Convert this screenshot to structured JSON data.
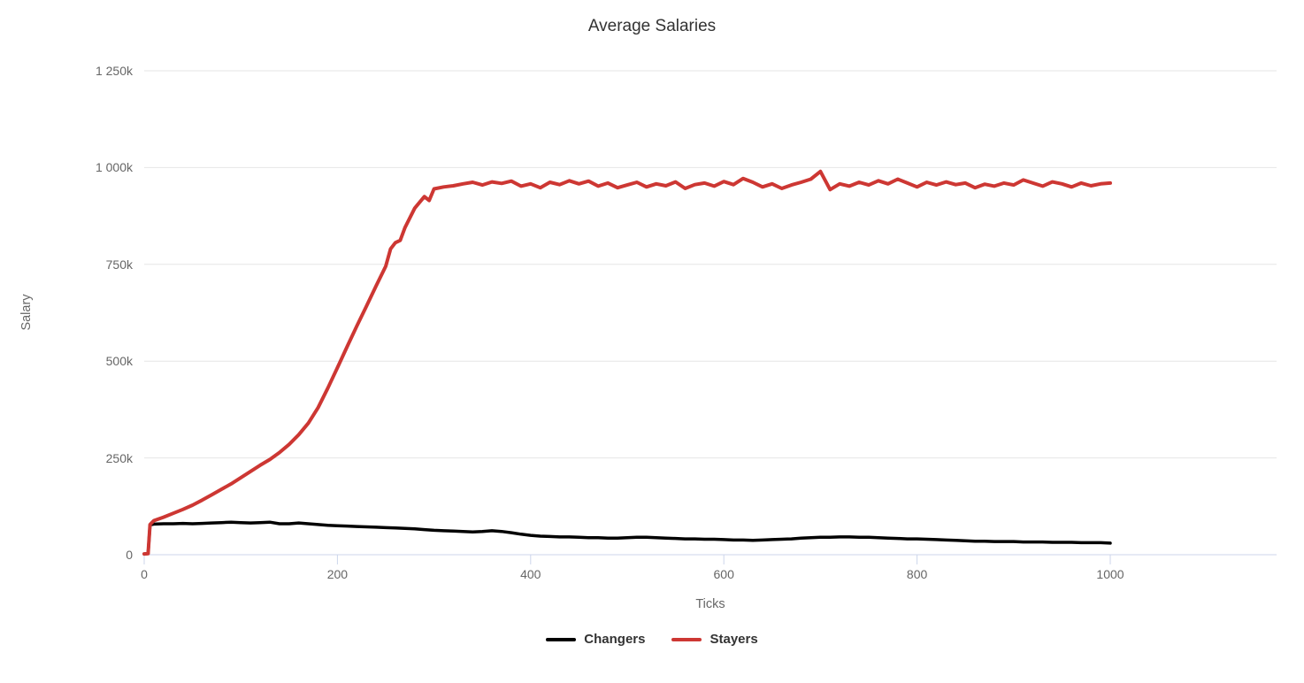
{
  "title": "Average Salaries",
  "style": {
    "background": "#ffffff",
    "title_color": "#333333",
    "tick_label_color": "#666666",
    "grid_color": "#e6e6e6",
    "axis_line_color": "#ccd6eb",
    "changers_color": "#000000",
    "stayers_color": "#cd3733"
  },
  "chart_data": {
    "type": "line",
    "title": "Average Salaries",
    "xlabel": "Ticks",
    "ylabel": "Salary",
    "values_unit": "thousands (k)",
    "xlim": [
      0,
      1172
    ],
    "ylim_k": [
      0,
      1250
    ],
    "x_ticks": [
      0,
      200,
      400,
      600,
      800,
      1000
    ],
    "y_ticks": [
      {
        "label": "0",
        "value_k": 0
      },
      {
        "label": "250k",
        "value_k": 250
      },
      {
        "label": "500k",
        "value_k": 500
      },
      {
        "label": "750k",
        "value_k": 750
      },
      {
        "label": "1 000k",
        "value_k": 1000
      },
      {
        "label": "1 250k",
        "value_k": 1250
      }
    ],
    "grid": "horizontal",
    "legend_position": "bottom-center",
    "series": [
      {
        "name": "Changers",
        "color": "#000000",
        "line_width": 3.5,
        "points": [
          [
            0,
            2
          ],
          [
            4,
            3
          ],
          [
            6,
            77
          ],
          [
            10,
            79
          ],
          [
            20,
            80
          ],
          [
            30,
            80
          ],
          [
            40,
            81
          ],
          [
            50,
            80
          ],
          [
            60,
            81
          ],
          [
            70,
            82
          ],
          [
            80,
            83
          ],
          [
            90,
            84
          ],
          [
            100,
            83
          ],
          [
            110,
            82
          ],
          [
            120,
            83
          ],
          [
            130,
            84
          ],
          [
            140,
            80
          ],
          [
            150,
            80
          ],
          [
            160,
            82
          ],
          [
            170,
            80
          ],
          [
            180,
            78
          ],
          [
            190,
            76
          ],
          [
            200,
            75
          ],
          [
            210,
            74
          ],
          [
            220,
            73
          ],
          [
            230,
            72
          ],
          [
            240,
            71
          ],
          [
            250,
            70
          ],
          [
            260,
            69
          ],
          [
            270,
            68
          ],
          [
            280,
            67
          ],
          [
            290,
            65
          ],
          [
            300,
            63
          ],
          [
            310,
            62
          ],
          [
            320,
            61
          ],
          [
            330,
            60
          ],
          [
            340,
            59
          ],
          [
            350,
            60
          ],
          [
            360,
            62
          ],
          [
            370,
            60
          ],
          [
            380,
            57
          ],
          [
            390,
            53
          ],
          [
            400,
            50
          ],
          [
            410,
            48
          ],
          [
            420,
            47
          ],
          [
            430,
            46
          ],
          [
            440,
            46
          ],
          [
            450,
            45
          ],
          [
            460,
            44
          ],
          [
            470,
            44
          ],
          [
            480,
            43
          ],
          [
            490,
            43
          ],
          [
            500,
            44
          ],
          [
            510,
            45
          ],
          [
            520,
            45
          ],
          [
            530,
            44
          ],
          [
            540,
            43
          ],
          [
            550,
            42
          ],
          [
            560,
            41
          ],
          [
            570,
            41
          ],
          [
            580,
            40
          ],
          [
            590,
            40
          ],
          [
            600,
            39
          ],
          [
            610,
            38
          ],
          [
            620,
            38
          ],
          [
            630,
            37
          ],
          [
            640,
            38
          ],
          [
            650,
            39
          ],
          [
            660,
            40
          ],
          [
            670,
            41
          ],
          [
            680,
            43
          ],
          [
            690,
            44
          ],
          [
            700,
            45
          ],
          [
            710,
            45
          ],
          [
            720,
            46
          ],
          [
            730,
            46
          ],
          [
            740,
            45
          ],
          [
            750,
            45
          ],
          [
            760,
            44
          ],
          [
            770,
            43
          ],
          [
            780,
            42
          ],
          [
            790,
            41
          ],
          [
            800,
            41
          ],
          [
            810,
            40
          ],
          [
            820,
            39
          ],
          [
            830,
            38
          ],
          [
            840,
            37
          ],
          [
            850,
            36
          ],
          [
            860,
            35
          ],
          [
            870,
            35
          ],
          [
            880,
            34
          ],
          [
            890,
            34
          ],
          [
            900,
            34
          ],
          [
            910,
            33
          ],
          [
            920,
            33
          ],
          [
            930,
            33
          ],
          [
            940,
            32
          ],
          [
            950,
            32
          ],
          [
            960,
            32
          ],
          [
            970,
            31
          ],
          [
            980,
            31
          ],
          [
            990,
            31
          ],
          [
            1000,
            30
          ]
        ]
      },
      {
        "name": "Stayers",
        "color": "#cd3733",
        "line_width": 4,
        "points": [
          [
            0,
            2
          ],
          [
            4,
            3
          ],
          [
            6,
            78
          ],
          [
            10,
            88
          ],
          [
            20,
            97
          ],
          [
            30,
            107
          ],
          [
            40,
            117
          ],
          [
            50,
            128
          ],
          [
            60,
            141
          ],
          [
            70,
            155
          ],
          [
            80,
            169
          ],
          [
            90,
            183
          ],
          [
            100,
            199
          ],
          [
            110,
            215
          ],
          [
            120,
            231
          ],
          [
            130,
            246
          ],
          [
            140,
            264
          ],
          [
            150,
            285
          ],
          [
            160,
            310
          ],
          [
            170,
            340
          ],
          [
            180,
            380
          ],
          [
            190,
            430
          ],
          [
            200,
            483
          ],
          [
            210,
            537
          ],
          [
            220,
            590
          ],
          [
            230,
            642
          ],
          [
            240,
            694
          ],
          [
            250,
            745
          ],
          [
            255,
            790
          ],
          [
            260,
            806
          ],
          [
            265,
            812
          ],
          [
            270,
            845
          ],
          [
            280,
            895
          ],
          [
            290,
            925
          ],
          [
            295,
            915
          ],
          [
            300,
            945
          ],
          [
            310,
            950
          ],
          [
            320,
            953
          ],
          [
            330,
            958
          ],
          [
            340,
            962
          ],
          [
            350,
            955
          ],
          [
            360,
            963
          ],
          [
            370,
            959
          ],
          [
            380,
            965
          ],
          [
            390,
            952
          ],
          [
            400,
            958
          ],
          [
            410,
            948
          ],
          [
            420,
            962
          ],
          [
            430,
            956
          ],
          [
            440,
            966
          ],
          [
            450,
            958
          ],
          [
            460,
            965
          ],
          [
            470,
            952
          ],
          [
            480,
            960
          ],
          [
            490,
            948
          ],
          [
            500,
            955
          ],
          [
            510,
            962
          ],
          [
            520,
            950
          ],
          [
            530,
            958
          ],
          [
            540,
            953
          ],
          [
            550,
            963
          ],
          [
            560,
            946
          ],
          [
            570,
            956
          ],
          [
            580,
            960
          ],
          [
            590,
            952
          ],
          [
            600,
            964
          ],
          [
            610,
            956
          ],
          [
            620,
            972
          ],
          [
            630,
            962
          ],
          [
            640,
            950
          ],
          [
            650,
            958
          ],
          [
            660,
            946
          ],
          [
            670,
            955
          ],
          [
            680,
            962
          ],
          [
            690,
            970
          ],
          [
            700,
            990
          ],
          [
            710,
            943
          ],
          [
            720,
            958
          ],
          [
            730,
            952
          ],
          [
            740,
            962
          ],
          [
            750,
            955
          ],
          [
            760,
            966
          ],
          [
            770,
            958
          ],
          [
            780,
            970
          ],
          [
            790,
            960
          ],
          [
            800,
            950
          ],
          [
            810,
            962
          ],
          [
            820,
            955
          ],
          [
            830,
            963
          ],
          [
            840,
            956
          ],
          [
            850,
            960
          ],
          [
            860,
            948
          ],
          [
            870,
            957
          ],
          [
            880,
            952
          ],
          [
            890,
            960
          ],
          [
            900,
            955
          ],
          [
            910,
            968
          ],
          [
            920,
            960
          ],
          [
            930,
            952
          ],
          [
            940,
            963
          ],
          [
            950,
            958
          ],
          [
            960,
            950
          ],
          [
            970,
            960
          ],
          [
            980,
            953
          ],
          [
            990,
            958
          ],
          [
            1000,
            960
          ]
        ]
      }
    ]
  }
}
